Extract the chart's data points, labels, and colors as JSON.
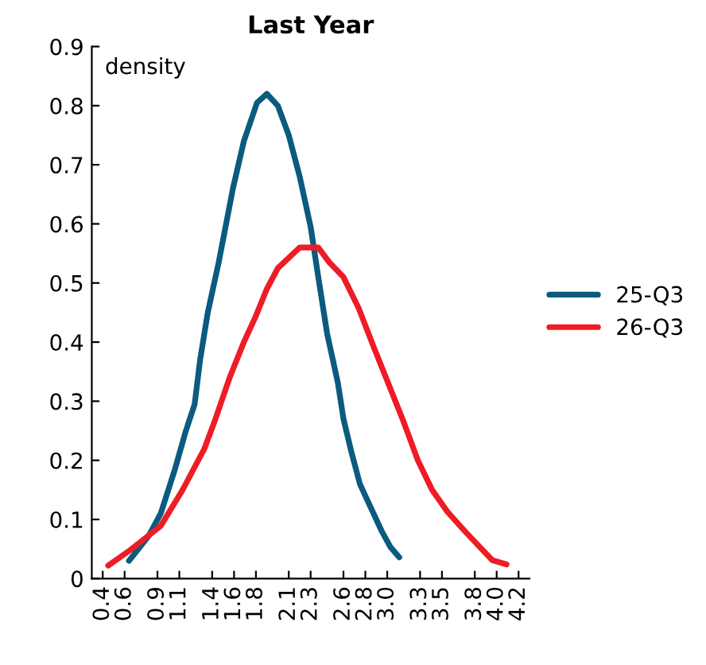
{
  "chart_data": {
    "type": "line",
    "title": "Last Year",
    "ylabel": "density",
    "xlim": [
      0.3,
      4.3
    ],
    "ylim": [
      0,
      0.9
    ],
    "xticks": [
      0.4,
      0.6,
      0.9,
      1.1,
      1.4,
      1.6,
      1.8,
      2.1,
      2.3,
      2.6,
      2.8,
      {
        "value": 3.0,
        "label": "3.0"
      },
      3.3,
      3.5,
      3.8,
      {
        "value": 4.0,
        "label": "4.0"
      },
      4.2
    ],
    "yticks": [
      {
        "value": 0,
        "label": "0"
      },
      0.1,
      0.2,
      0.3,
      0.4,
      0.5,
      0.6,
      0.7,
      0.8,
      0.9
    ],
    "grid": false,
    "legend": "right",
    "marker": "none",
    "line_style": "solid",
    "series": [
      {
        "name": "25-Q3",
        "color": "#0b5a80",
        "x": [
          0.64,
          0.82,
          0.93,
          1.06,
          1.16,
          1.24,
          1.29,
          1.36,
          1.46,
          1.59,
          1.69,
          1.81,
          1.9,
          2.0,
          2.1,
          2.2,
          2.3,
          2.37,
          2.45,
          2.55,
          2.6,
          2.67,
          2.75,
          2.85,
          2.95,
          3.03,
          3.11
        ],
        "values": [
          0.03,
          0.072,
          0.11,
          0.185,
          0.25,
          0.295,
          0.37,
          0.45,
          0.535,
          0.66,
          0.74,
          0.805,
          0.82,
          0.8,
          0.75,
          0.68,
          0.595,
          0.51,
          0.415,
          0.33,
          0.27,
          0.216,
          0.16,
          0.12,
          0.08,
          0.053,
          0.036
        ]
      },
      {
        "name": "26-Q3",
        "color": "#ee1c25",
        "x": [
          0.45,
          0.65,
          0.78,
          0.93,
          1.13,
          1.33,
          1.43,
          1.56,
          1.69,
          1.79,
          1.9,
          2.0,
          2.2,
          2.37,
          2.47,
          2.6,
          2.74,
          2.88,
          3.01,
          3.15,
          3.28,
          3.41,
          3.55,
          3.71,
          3.96,
          4.09
        ],
        "values": [
          0.022,
          0.048,
          0.067,
          0.089,
          0.15,
          0.22,
          0.27,
          0.34,
          0.4,
          0.44,
          0.49,
          0.525,
          0.56,
          0.56,
          0.535,
          0.51,
          0.457,
          0.39,
          0.33,
          0.265,
          0.2,
          0.15,
          0.113,
          0.08,
          0.031,
          0.024
        ]
      }
    ]
  }
}
